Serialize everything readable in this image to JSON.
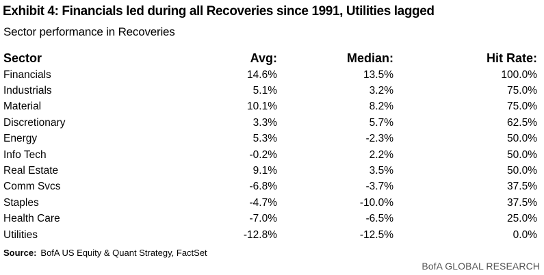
{
  "title": "Exhibit 4: Financials led during all Recoveries since 1991, Utilities lagged",
  "subtitle": "Sector performance in Recoveries",
  "table": {
    "headers": {
      "sector": "Sector",
      "avg": "Avg:",
      "median": "Median:",
      "hit_rate": "Hit Rate:"
    },
    "rows": [
      {
        "sector": "Financials",
        "avg": "14.6%",
        "median": "13.5%",
        "hit_rate": "100.0%"
      },
      {
        "sector": "Industrials",
        "avg": "5.1%",
        "median": "3.2%",
        "hit_rate": "75.0%"
      },
      {
        "sector": "Material",
        "avg": "10.1%",
        "median": "8.2%",
        "hit_rate": "75.0%"
      },
      {
        "sector": "Discretionary",
        "avg": "3.3%",
        "median": "5.7%",
        "hit_rate": "62.5%"
      },
      {
        "sector": "Energy",
        "avg": "5.3%",
        "median": "-2.3%",
        "hit_rate": "50.0%"
      },
      {
        "sector": "Info Tech",
        "avg": "-0.2%",
        "median": "2.2%",
        "hit_rate": "50.0%"
      },
      {
        "sector": "Real Estate",
        "avg": "9.1%",
        "median": "3.5%",
        "hit_rate": "50.0%"
      },
      {
        "sector": "Comm Svcs",
        "avg": "-6.8%",
        "median": "-3.7%",
        "hit_rate": "37.5%"
      },
      {
        "sector": "Staples",
        "avg": "-4.7%",
        "median": "-10.0%",
        "hit_rate": "37.5%"
      },
      {
        "sector": "Health Care",
        "avg": "-7.0%",
        "median": "-6.5%",
        "hit_rate": "25.0%"
      },
      {
        "sector": "Utilities",
        "avg": "-12.8%",
        "median": "-12.5%",
        "hit_rate": "0.0%"
      }
    ]
  },
  "source": {
    "label": "Source:",
    "text": "BofA US Equity & Quant Strategy, FactSet"
  },
  "footer": {
    "brand": "BofA GLOBAL RESEARCH"
  }
}
